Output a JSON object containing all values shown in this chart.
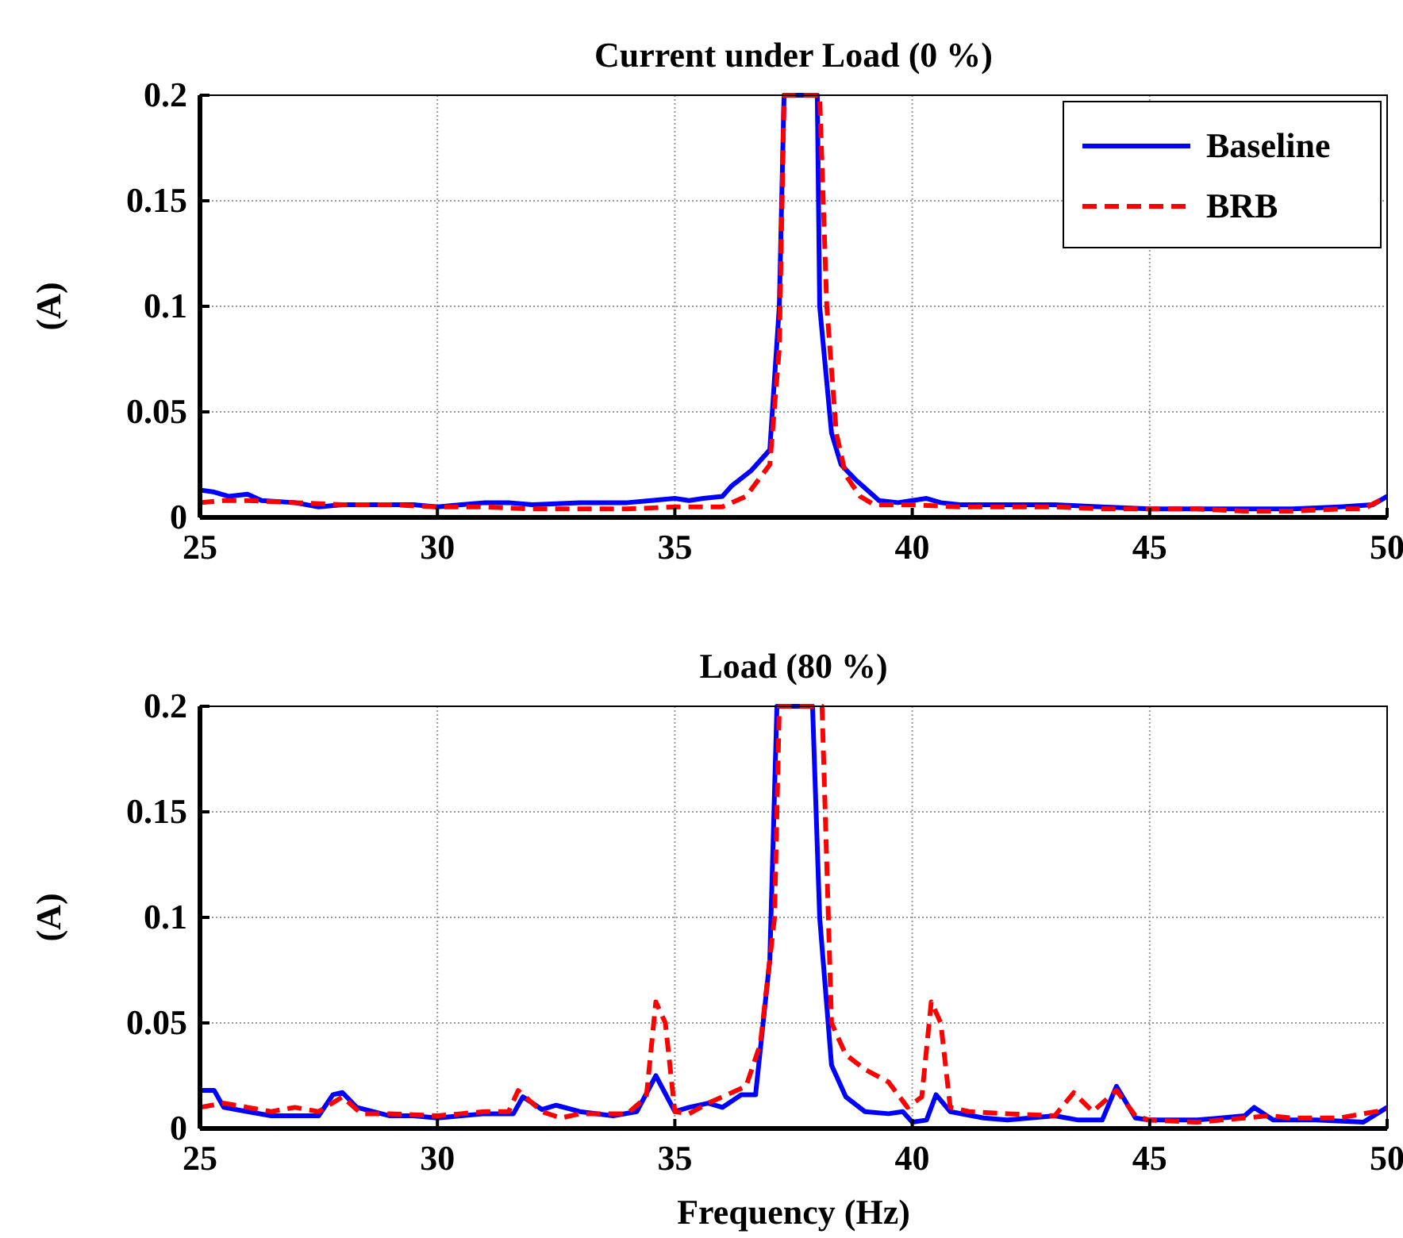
{
  "chart_data": [
    {
      "type": "line",
      "title": "Current under Load (0 %)",
      "ylabel": "(A)",
      "xlim": [
        25,
        50
      ],
      "xticks": [
        25,
        30,
        35,
        40,
        45,
        50
      ],
      "ylim": [
        0,
        0.2
      ],
      "yticks": [
        0,
        0.05,
        0.1,
        0.15,
        0.2
      ],
      "grid": true,
      "legend": "top right",
      "series": [
        {
          "name": "Baseline",
          "color": "#0000ff",
          "line_style": "solid",
          "x": [
            25,
            25.3,
            25.6,
            26,
            26.3,
            27,
            27.5,
            28,
            29,
            29.5,
            30,
            30.5,
            31,
            31.5,
            32,
            33,
            34,
            34.5,
            35,
            35.3,
            35.6,
            36,
            36.2,
            36.6,
            37,
            37.2,
            37.3,
            38,
            38.05,
            38.3,
            38.5,
            38.8,
            39,
            39.3,
            39.7,
            40,
            40.3,
            40.6,
            41,
            42,
            43,
            44,
            45,
            46,
            47,
            48,
            49,
            49.7,
            50
          ],
          "values": [
            0.013,
            0.012,
            0.01,
            0.011,
            0.008,
            0.007,
            0.005,
            0.006,
            0.006,
            0.006,
            0.005,
            0.006,
            0.007,
            0.007,
            0.006,
            0.007,
            0.007,
            0.008,
            0.009,
            0.008,
            0.009,
            0.01,
            0.015,
            0.022,
            0.032,
            0.1,
            0.2,
            0.2,
            0.1,
            0.04,
            0.025,
            0.018,
            0.014,
            0.008,
            0.007,
            0.008,
            0.009,
            0.007,
            0.006,
            0.006,
            0.006,
            0.005,
            0.004,
            0.004,
            0.004,
            0.004,
            0.005,
            0.006,
            0.01
          ]
        },
        {
          "name": "BRB",
          "color": "#ff0000",
          "line_style": "dashed",
          "x": [
            25,
            25.5,
            26,
            27,
            28,
            29,
            30,
            31,
            32,
            33,
            34,
            35,
            35.5,
            36,
            36.5,
            37,
            37.2,
            37.3,
            38.05,
            38.2,
            38.4,
            38.6,
            38.9,
            39.2,
            40,
            41,
            42,
            43,
            44,
            45,
            46,
            47,
            48,
            49,
            49.5,
            50
          ],
          "values": [
            0.007,
            0.008,
            0.008,
            0.007,
            0.006,
            0.006,
            0.005,
            0.005,
            0.004,
            0.004,
            0.004,
            0.005,
            0.005,
            0.005,
            0.01,
            0.025,
            0.08,
            0.2,
            0.2,
            0.1,
            0.04,
            0.02,
            0.01,
            0.006,
            0.006,
            0.005,
            0.005,
            0.005,
            0.004,
            0.004,
            0.004,
            0.003,
            0.003,
            0.004,
            0.004,
            0.01
          ]
        }
      ]
    },
    {
      "type": "line",
      "title": "Load (80 %)",
      "xlabel": "Frequency (Hz)",
      "ylabel": "(A)",
      "xlim": [
        25,
        50
      ],
      "xticks": [
        25,
        30,
        35,
        40,
        45,
        50
      ],
      "ylim": [
        0,
        0.2
      ],
      "yticks": [
        0,
        0.05,
        0.1,
        0.15,
        0.2
      ],
      "grid": true,
      "series": [
        {
          "color": "#0000ff",
          "line_style": "solid",
          "x": [
            25,
            25.3,
            25.5,
            26,
            26.5,
            27,
            27.5,
            27.8,
            28,
            28.3,
            29,
            29.5,
            30,
            30.5,
            31,
            31.6,
            31.8,
            32.2,
            32.5,
            33,
            33.7,
            34.2,
            34.6,
            35,
            35.3,
            35.7,
            36,
            36.4,
            36.7,
            37,
            37.15,
            37.9,
            38.05,
            38.3,
            38.6,
            39,
            39.5,
            39.8,
            40,
            40.3,
            40.5,
            40.8,
            41.5,
            42,
            43,
            43.5,
            44,
            44.3,
            44.7,
            45,
            46,
            46.5,
            47,
            47.2,
            47.6,
            48.5,
            49.5,
            50
          ],
          "values": [
            0.018,
            0.018,
            0.01,
            0.008,
            0.006,
            0.006,
            0.006,
            0.016,
            0.017,
            0.01,
            0.006,
            0.006,
            0.005,
            0.006,
            0.007,
            0.007,
            0.015,
            0.009,
            0.011,
            0.008,
            0.006,
            0.008,
            0.025,
            0.008,
            0.01,
            0.012,
            0.01,
            0.016,
            0.016,
            0.08,
            0.2,
            0.2,
            0.1,
            0.03,
            0.015,
            0.008,
            0.007,
            0.008,
            0.003,
            0.004,
            0.016,
            0.008,
            0.005,
            0.004,
            0.006,
            0.004,
            0.004,
            0.02,
            0.005,
            0.004,
            0.004,
            0.005,
            0.006,
            0.01,
            0.004,
            0.004,
            0.003,
            0.01
          ]
        },
        {
          "color": "#ff0000",
          "line_style": "dashed",
          "x": [
            25,
            25.5,
            26,
            26.5,
            27,
            27.5,
            28,
            28.4,
            29,
            30,
            30.5,
            31,
            31.5,
            31.7,
            32.2,
            32.6,
            33,
            34,
            34.4,
            34.6,
            34.8,
            35,
            35.3,
            35.7,
            36,
            36.5,
            36.8,
            37.1,
            37.2,
            38.1,
            38.3,
            38.6,
            39,
            39.5,
            39.9,
            40.2,
            40.4,
            40.6,
            40.8,
            41.2,
            42,
            43,
            43.4,
            43.8,
            44.3,
            44.7,
            45,
            46,
            47,
            47.5,
            48,
            49,
            50
          ],
          "values": [
            0.01,
            0.012,
            0.01,
            0.008,
            0.01,
            0.008,
            0.015,
            0.007,
            0.007,
            0.006,
            0.007,
            0.008,
            0.008,
            0.018,
            0.008,
            0.005,
            0.007,
            0.007,
            0.015,
            0.06,
            0.05,
            0.008,
            0.007,
            0.012,
            0.015,
            0.02,
            0.04,
            0.1,
            0.2,
            0.2,
            0.05,
            0.035,
            0.028,
            0.022,
            0.01,
            0.015,
            0.06,
            0.05,
            0.01,
            0.008,
            0.007,
            0.006,
            0.017,
            0.008,
            0.018,
            0.006,
            0.004,
            0.003,
            0.005,
            0.006,
            0.005,
            0.005,
            0.009
          ]
        }
      ]
    }
  ]
}
